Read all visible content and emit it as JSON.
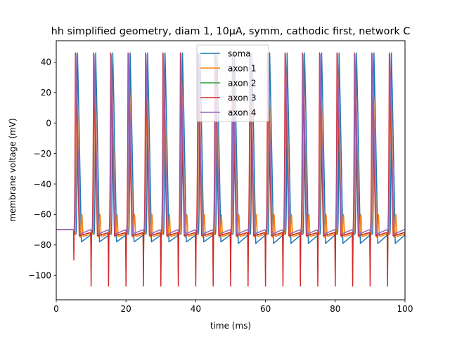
{
  "chart_data": {
    "type": "line",
    "title": "hh simplified geometry, diam 1, 10μA, symm, cathodic first, network C",
    "xlabel": "time (ms)",
    "ylabel": "membrane voltage (mV)",
    "xlim": [
      0,
      100
    ],
    "ylim": [
      -116,
      54
    ],
    "xticks": [
      0,
      20,
      40,
      60,
      80,
      100
    ],
    "yticks": [
      -100,
      -80,
      -60,
      -40,
      -20,
      0,
      20,
      40
    ],
    "xtick_labels": [
      "0",
      "20",
      "40",
      "60",
      "80",
      "100"
    ],
    "ytick_labels": [
      "−100",
      "−80",
      "−60",
      "−40",
      "−20",
      "0",
      "20",
      "40"
    ],
    "grid": false,
    "legend_position": "upper-center",
    "stimulus": {
      "first_pulse_ms": 5.0,
      "period_ms": 5.0,
      "pulse_count": 19
    },
    "series": [
      {
        "name": "soma",
        "color": "#1f77b4",
        "resting_mv": -70,
        "spike_delay_ms": 0.9,
        "peak_mv": 46,
        "undershoot_mv": -78,
        "late_undershoot_mv": -79,
        "between_mv": -73,
        "stim_dip_mv": -71
      },
      {
        "name": "axon 1",
        "color": "#ff7f0e",
        "resting_mv": -70,
        "spike_delay_ms": 0.55,
        "peak_mv": 37,
        "undershoot_mv": -75,
        "between_mv": -73,
        "second_bump_mv": -60,
        "stim_dip_mv": -71
      },
      {
        "name": "axon 2",
        "color": "#2ca02c",
        "resting_mv": -70,
        "spike_delay_ms": 0.4,
        "peak_mv": 44,
        "undershoot_mv": -74,
        "between_mv": -72,
        "stim_dip_mv": -97
      },
      {
        "name": "axon 3",
        "color": "#d62728",
        "resting_mv": -70,
        "spike_delay_ms": 0.3,
        "peak_mv": 46,
        "undershoot_mv": -74,
        "between_mv": -72,
        "first_stim_dip_mv": -108,
        "stim_dip_mv": -107
      },
      {
        "name": "axon 4",
        "color": "#9467bd",
        "resting_mv": -70,
        "spike_delay_ms": 0.45,
        "peak_mv": 45,
        "undershoot_mv": -73,
        "between_mv": -70,
        "stim_dip_mv": -71
      }
    ]
  }
}
